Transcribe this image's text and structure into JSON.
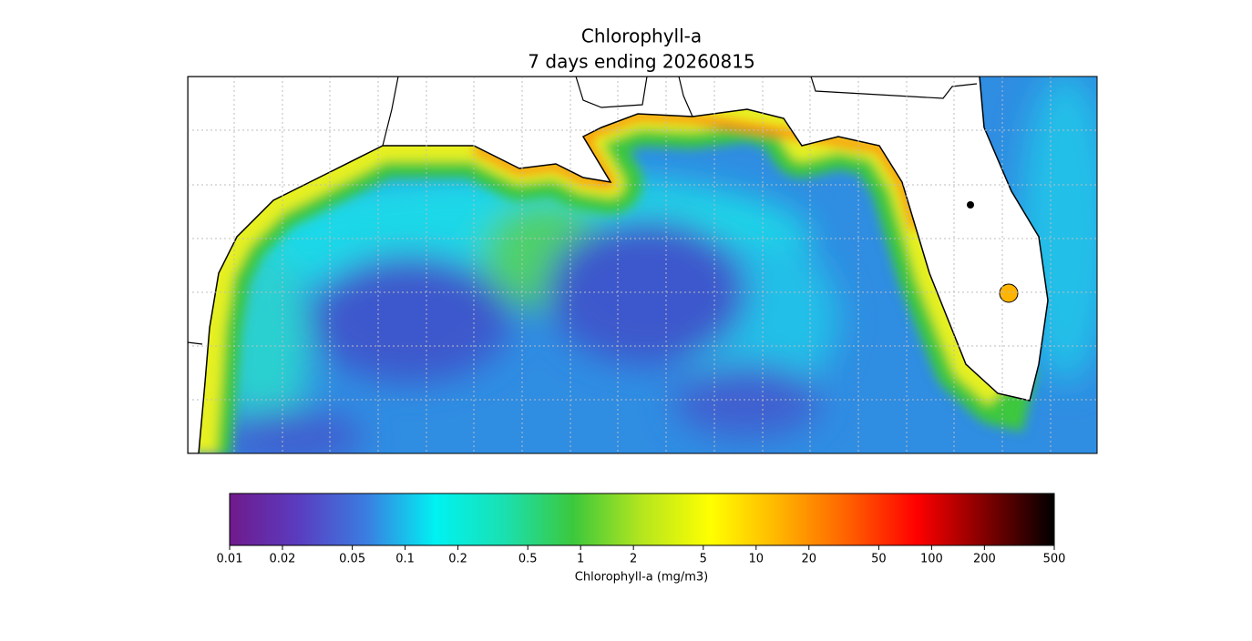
{
  "chart_data": {
    "type": "map",
    "title": "Chlorophyll-a",
    "subtitle": "7 days ending 20260815",
    "colorbar": {
      "label": "Chlorophyll-a (mg/m3)",
      "log": true,
      "lim": [
        0.01,
        500
      ],
      "ticks": [
        0.01,
        0.02,
        0.05,
        0.1,
        0.2,
        0.5,
        1,
        2,
        5,
        10,
        20,
        50,
        100,
        200,
        500
      ],
      "colors": [
        "#701a8c",
        "#5a3cc0",
        "#3a7ee2",
        "#00f2f2",
        "#1ae0b0",
        "#3cc83c",
        "#b4e61e",
        "#ffff00",
        "#ffb400",
        "#ff6000",
        "#ff0000",
        "#800000",
        "#000000"
      ]
    }
  }
}
